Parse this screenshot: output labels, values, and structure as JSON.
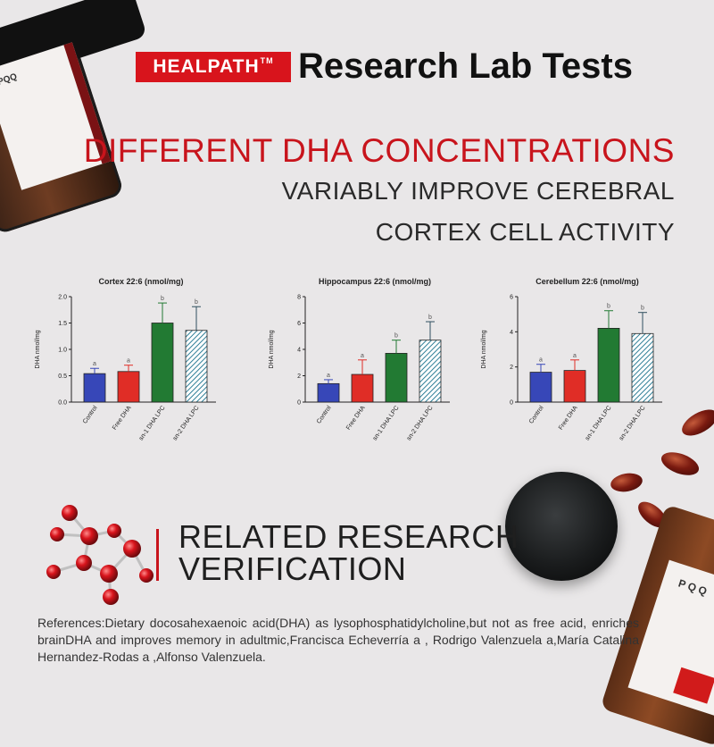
{
  "header": {
    "brand": "HEALPATH",
    "trademark": "TM",
    "title": "Research Lab Tests"
  },
  "headline": {
    "line1": "DIFFERENT DHA CONCENTRATIONS",
    "line2": "VARIABLY IMPROVE CEREBRAL",
    "line3": "CORTEX CELL ACTIVITY"
  },
  "product": {
    "jar_label": "PQQ"
  },
  "colors": {
    "accent": "#c8141c",
    "control": "#3747b8",
    "free_dha": "#e02d26",
    "sn1": "#227a33",
    "sn2": "#a6ccd8"
  },
  "chart_data": [
    {
      "type": "bar",
      "title": "Cortex 22:6 (nmol/mg)",
      "ylabel": "DHA nmol/mg",
      "ylim": [
        0,
        2.0
      ],
      "yticks": [
        "0.0",
        "0.5",
        "1.0",
        "1.5",
        "2.0"
      ],
      "categories": [
        "Control",
        "Free DHA",
        "sn-1 DHA LPC",
        "sn-2 DHA LPC"
      ],
      "values": [
        0.54,
        0.58,
        1.5,
        1.36
      ],
      "errors": [
        0.1,
        0.12,
        0.38,
        0.45
      ],
      "sig_labels": [
        "a",
        "a",
        "b",
        "b"
      ]
    },
    {
      "type": "bar",
      "title": "Hippocampus 22:6 (nmol/mg)",
      "ylabel": "DHA nmol/mg",
      "ylim": [
        0,
        8
      ],
      "yticks": [
        "0",
        "2",
        "4",
        "6",
        "8"
      ],
      "categories": [
        "Control",
        "Free DHA",
        "sn-1 DHA LPC",
        "sn-2 DHA LPC"
      ],
      "values": [
        1.4,
        2.1,
        3.7,
        4.7
      ],
      "errors": [
        0.3,
        1.1,
        1.0,
        1.4
      ],
      "sig_labels": [
        "a",
        "a",
        "b",
        "b"
      ]
    },
    {
      "type": "bar",
      "title": "Cerebellum 22:6 (nmol/mg)",
      "ylabel": "DHA nmol/mg",
      "ylim": [
        0,
        6
      ],
      "yticks": [
        "0",
        "2",
        "4",
        "6"
      ],
      "categories": [
        "Control",
        "Free DHA",
        "sn-1 DHA LPC",
        "sn-2 DHA LPC"
      ],
      "values": [
        1.7,
        1.8,
        4.2,
        3.9
      ],
      "errors": [
        0.45,
        0.6,
        1.0,
        1.2
      ],
      "sig_labels": [
        "a",
        "a",
        "b",
        "b"
      ]
    }
  ],
  "research": {
    "title_line1": "RELATED RESEARCH",
    "title_line2": "VERIFICATION"
  },
  "references": " References:Dietary docosahexaenoic acid(DHA) as lysophosphatidylcholine,but not as free acid, enriches brainDHA and improves memory in adultmic,Francisca Echeverría a , Rodrigo Valenzuela a,María Catalina Hernandez-Rodas a ,Alfonso Valenzuela."
}
